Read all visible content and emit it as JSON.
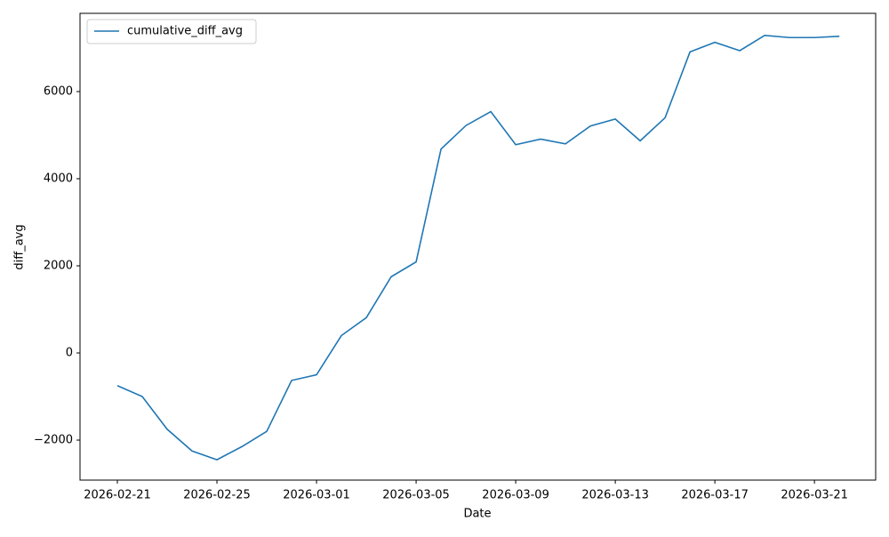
{
  "chart_data": {
    "type": "line",
    "xlabel": "Date",
    "ylabel": "diff_avg",
    "x": [
      "2026-02-21",
      "2026-02-22",
      "2026-02-23",
      "2026-02-24",
      "2026-02-25",
      "2026-02-26",
      "2026-02-27",
      "2026-02-28",
      "2026-03-01",
      "2026-03-02",
      "2026-03-03",
      "2026-03-04",
      "2026-03-05",
      "2026-03-06",
      "2026-03-07",
      "2026-03-08",
      "2026-03-09",
      "2026-03-10",
      "2026-03-11",
      "2026-03-12",
      "2026-03-13",
      "2026-03-14",
      "2026-03-15",
      "2026-03-16",
      "2026-03-17",
      "2026-03-18",
      "2026-03-19",
      "2026-03-20",
      "2026-03-21",
      "2026-03-22"
    ],
    "series": [
      {
        "name": "cumulative_diff_avg",
        "color": "#1f77b4",
        "values": [
          -750,
          -1000,
          -1750,
          -2250,
          -2450,
          -2150,
          -1800,
          -630,
          -500,
          400,
          810,
          1750,
          2090,
          4680,
          5220,
          5540,
          4780,
          4910,
          4800,
          5210,
          5370,
          4870,
          5400,
          6910,
          7130,
          6940,
          7290,
          7240,
          7240,
          7270
        ]
      }
    ],
    "xlim": [
      "2026-02-19T12:00:00Z",
      "2026-03-23T11:00:00Z"
    ],
    "xticks": [
      "2026-02-21",
      "2026-02-25",
      "2026-03-01",
      "2026-03-05",
      "2026-03-09",
      "2026-03-13",
      "2026-03-17",
      "2026-03-21"
    ],
    "ylim": [
      -2918,
      7796
    ],
    "yticks": [
      {
        "value": -2000,
        "label": "−2000"
      },
      0,
      2000,
      4000,
      6000
    ],
    "legend": "upper left"
  }
}
